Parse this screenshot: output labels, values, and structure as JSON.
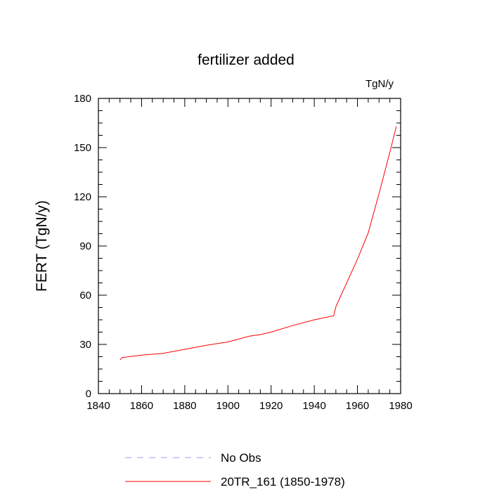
{
  "chart_data": {
    "type": "line",
    "title": "fertilizer added",
    "units_label": "TgN/y",
    "xlabel": "",
    "ylabel": "FERT  (TgN/y)",
    "xlim": [
      1840,
      1980
    ],
    "ylim": [
      0,
      180
    ],
    "x_ticks": [
      1840,
      1860,
      1880,
      1900,
      1920,
      1940,
      1960,
      1980
    ],
    "y_ticks": [
      0,
      30,
      60,
      90,
      120,
      150,
      180
    ],
    "grid": false,
    "legend_position": "bottom",
    "series": [
      {
        "name": "No Obs",
        "color": "#9999ff",
        "dashed": true,
        "x": [],
        "y": []
      },
      {
        "name": "20TR_161 (1850-1978)",
        "color": "#ff0000",
        "dashed": false,
        "x": [
          1850,
          1851,
          1860,
          1870,
          1880,
          1890,
          1900,
          1910,
          1915,
          1920,
          1930,
          1940,
          1949,
          1950,
          1960,
          1965,
          1970,
          1975,
          1978
        ],
        "y": [
          20.5,
          22,
          23.5,
          24.5,
          27,
          29.5,
          31.5,
          35,
          36,
          37.5,
          41.5,
          45,
          47.5,
          53,
          82,
          98,
          122,
          147,
          163
        ]
      }
    ]
  }
}
